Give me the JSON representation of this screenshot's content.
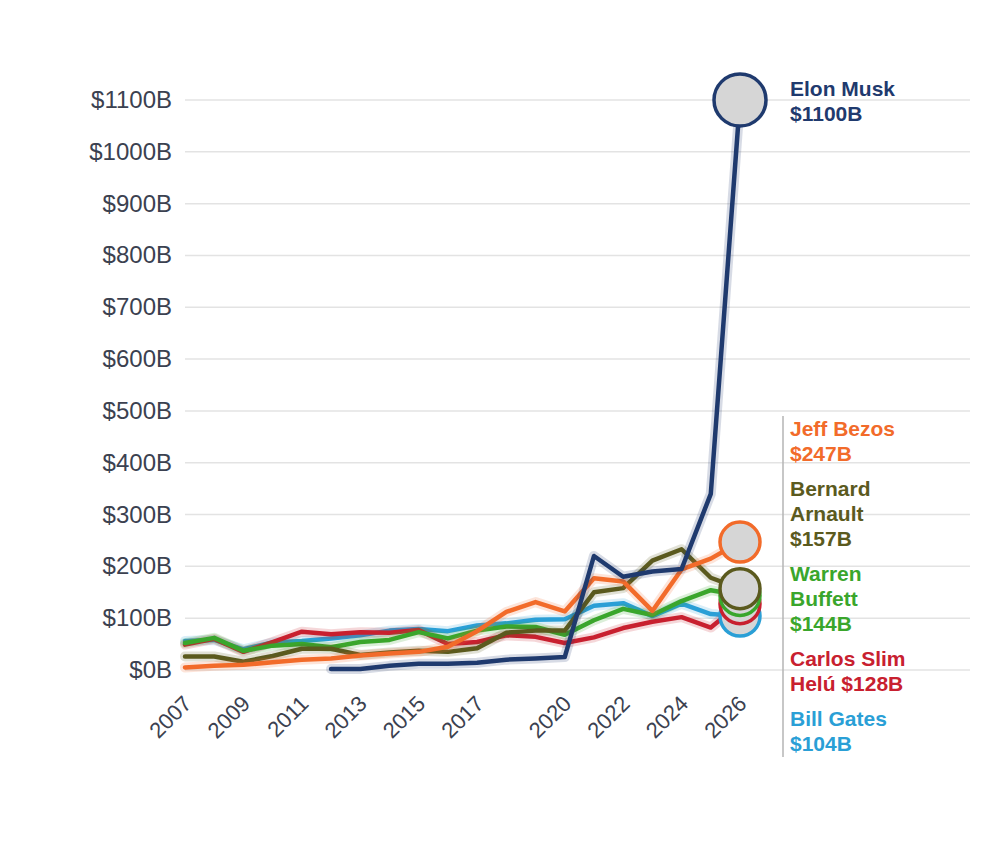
{
  "chart_data": {
    "type": "line",
    "x": [
      2007,
      2008,
      2009,
      2010,
      2011,
      2012,
      2013,
      2014,
      2015,
      2016,
      2017,
      2018,
      2019,
      2020,
      2021,
      2022,
      2023,
      2024,
      2025,
      2026
    ],
    "xlim": [
      2007,
      2026
    ],
    "xticks": [
      2007,
      2009,
      2011,
      2013,
      2015,
      2017,
      2020,
      2022,
      2024,
      2026
    ],
    "ylim": [
      0,
      1100
    ],
    "yticks": [
      {
        "value": 0,
        "label": "$0B"
      },
      {
        "value": 100,
        "label": "$100B"
      },
      {
        "value": 200,
        "label": "$200B"
      },
      {
        "value": 300,
        "label": "$300B"
      },
      {
        "value": 400,
        "label": "$400B"
      },
      {
        "value": 500,
        "label": "$500B"
      },
      {
        "value": 600,
        "label": "$600B"
      },
      {
        "value": 700,
        "label": "$700B"
      },
      {
        "value": 800,
        "label": "$800B"
      },
      {
        "value": 900,
        "label": "$900B"
      },
      {
        "value": 1000,
        "label": "$1000B"
      },
      {
        "value": 1100,
        "label": "$1100B"
      }
    ],
    "grid": true,
    "series": [
      {
        "name": "Elon Musk",
        "color": "#1f3a6e",
        "end_label": "$1100B",
        "values": [
          null,
          null,
          null,
          null,
          null,
          2,
          2,
          8,
          12,
          12,
          14,
          20,
          22,
          25,
          220,
          180,
          190,
          195,
          340,
          1100
        ]
      },
      {
        "name": "Jeff Bezos",
        "color": "#f26b2a",
        "end_label": "$247B",
        "values": [
          5,
          8,
          10,
          15,
          20,
          22,
          28,
          32,
          35,
          45,
          75,
          112,
          131,
          113,
          177,
          171,
          114,
          194,
          215,
          247
        ]
      },
      {
        "name": "Bernard Arnault",
        "color": "#5b5a1e",
        "end_label": "$157B",
        "values": [
          26,
          26,
          16,
          27,
          41,
          41,
          29,
          34,
          37,
          35,
          42,
          72,
          76,
          76,
          150,
          158,
          211,
          233,
          178,
          157
        ]
      },
      {
        "name": "Warren Buffett",
        "color": "#3aa62c",
        "end_label": "$144B",
        "values": [
          52,
          62,
          37,
          47,
          50,
          44,
          54,
          58,
          73,
          61,
          76,
          84,
          83,
          68,
          96,
          118,
          106,
          133,
          154,
          144
        ]
      },
      {
        "name": "Carlos Slim Helú",
        "color": "#c8202f",
        "end_label": "$128B",
        "values": [
          49,
          60,
          35,
          54,
          74,
          69,
          73,
          72,
          77,
          50,
          54,
          67,
          64,
          52,
          63,
          81,
          93,
          102,
          82,
          128
        ]
      },
      {
        "name": "Bill Gates",
        "color": "#2a9fd6",
        "end_label": "$104B",
        "values": [
          56,
          58,
          40,
          53,
          56,
          61,
          67,
          76,
          79,
          75,
          86,
          90,
          97,
          98,
          124,
          129,
          104,
          128,
          108,
          104
        ]
      }
    ]
  }
}
